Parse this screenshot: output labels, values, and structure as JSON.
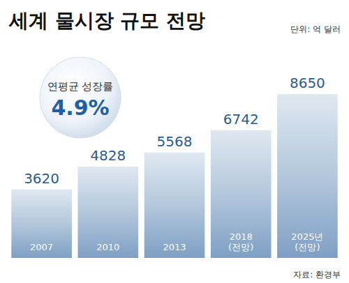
{
  "chart_data": {
    "type": "bar",
    "title": "세계 물시장 규모 전망",
    "subtitle": "단위: 억 달러",
    "categories": [
      "2007",
      "2010",
      "2013",
      "2018\n(전망)",
      "2025년\n(전망)"
    ],
    "values": [
      3620,
      4828,
      5568,
      6742,
      8650
    ],
    "color": "#7e9fc4",
    "ylim": [
      0,
      9500
    ],
    "grid": false,
    "data_labels": true,
    "tick_labels": "x",
    "annotations": [
      "연평균 성장률",
      "4.9%"
    ],
    "source": "자료: 환경부"
  }
}
